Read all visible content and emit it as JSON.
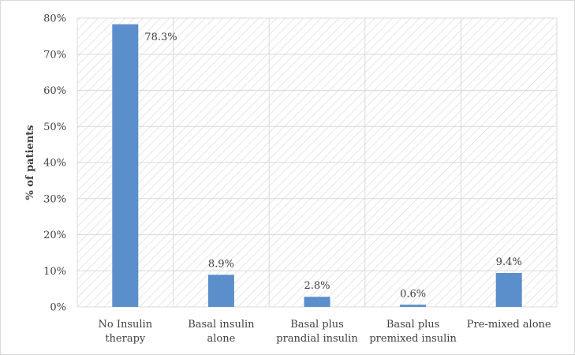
{
  "chart_data": {
    "type": "bar",
    "categories": [
      [
        "No Insulin",
        "therapy"
      ],
      [
        "Basal insulin",
        "alone"
      ],
      [
        "Basal plus",
        "prandial insulin"
      ],
      [
        "Basal plus",
        "premixed insulin"
      ],
      [
        "Pre-mixed alone"
      ]
    ],
    "values": [
      78.3,
      8.9,
      2.8,
      0.6,
      9.4
    ],
    "data_labels": [
      "78.3%",
      "8.9%",
      "2.8%",
      "0.6%",
      "9.4%"
    ],
    "xlabel": "",
    "ylabel": "% of patients",
    "ylim": [
      0,
      80
    ],
    "yticks": [
      0,
      10,
      20,
      30,
      40,
      50,
      60,
      70,
      80
    ],
    "ytick_labels": [
      "0%",
      "10%",
      "20%",
      "30%",
      "40%",
      "50%",
      "60%",
      "70%",
      "80%"
    ],
    "grid": true,
    "background_pattern": "diagonal-hatch",
    "colors": {
      "bar": "#5b8fcb",
      "grid": "#d9d9d9",
      "hatch": "#d6d6d6",
      "text": "#404040"
    }
  }
}
